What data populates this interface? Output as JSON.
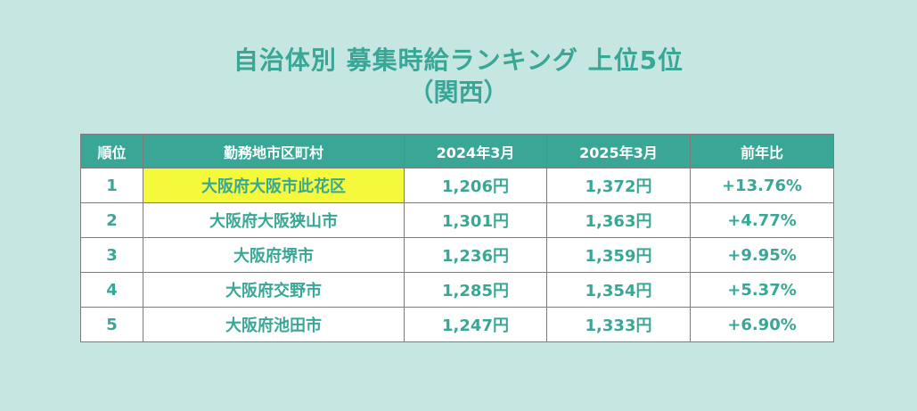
{
  "title": {
    "line1": "自治体別 募集時給ランキング 上位5位",
    "line2": "（関西）"
  },
  "table": {
    "headers": {
      "rank": "順位",
      "municipality": "勤務地市区町村",
      "y2024": "2024年3月",
      "y2025": "2025年3月",
      "yoy": "前年比"
    },
    "rows": [
      {
        "rank": "1",
        "municipality": "大阪府大阪市此花区",
        "y2024": "1,206円",
        "y2025": "1,372円",
        "yoy": "+13.76%",
        "highlight": true
      },
      {
        "rank": "2",
        "municipality": "大阪府大阪狭山市",
        "y2024": "1,301円",
        "y2025": "1,363円",
        "yoy": "+4.77%"
      },
      {
        "rank": "3",
        "municipality": "大阪府堺市",
        "y2024": "1,236円",
        "y2025": "1,359円",
        "yoy": "+9.95%"
      },
      {
        "rank": "4",
        "municipality": "大阪府交野市",
        "y2024": "1,285円",
        "y2025": "1,354円",
        "yoy": "+5.37%"
      },
      {
        "rank": "5",
        "municipality": "大阪府池田市",
        "y2024": "1,247円",
        "y2025": "1,333円",
        "yoy": "+6.90%"
      }
    ]
  },
  "colors": {
    "background": "#c6e6e2",
    "accent": "#3aa796",
    "highlight": "#f4fa3b"
  }
}
